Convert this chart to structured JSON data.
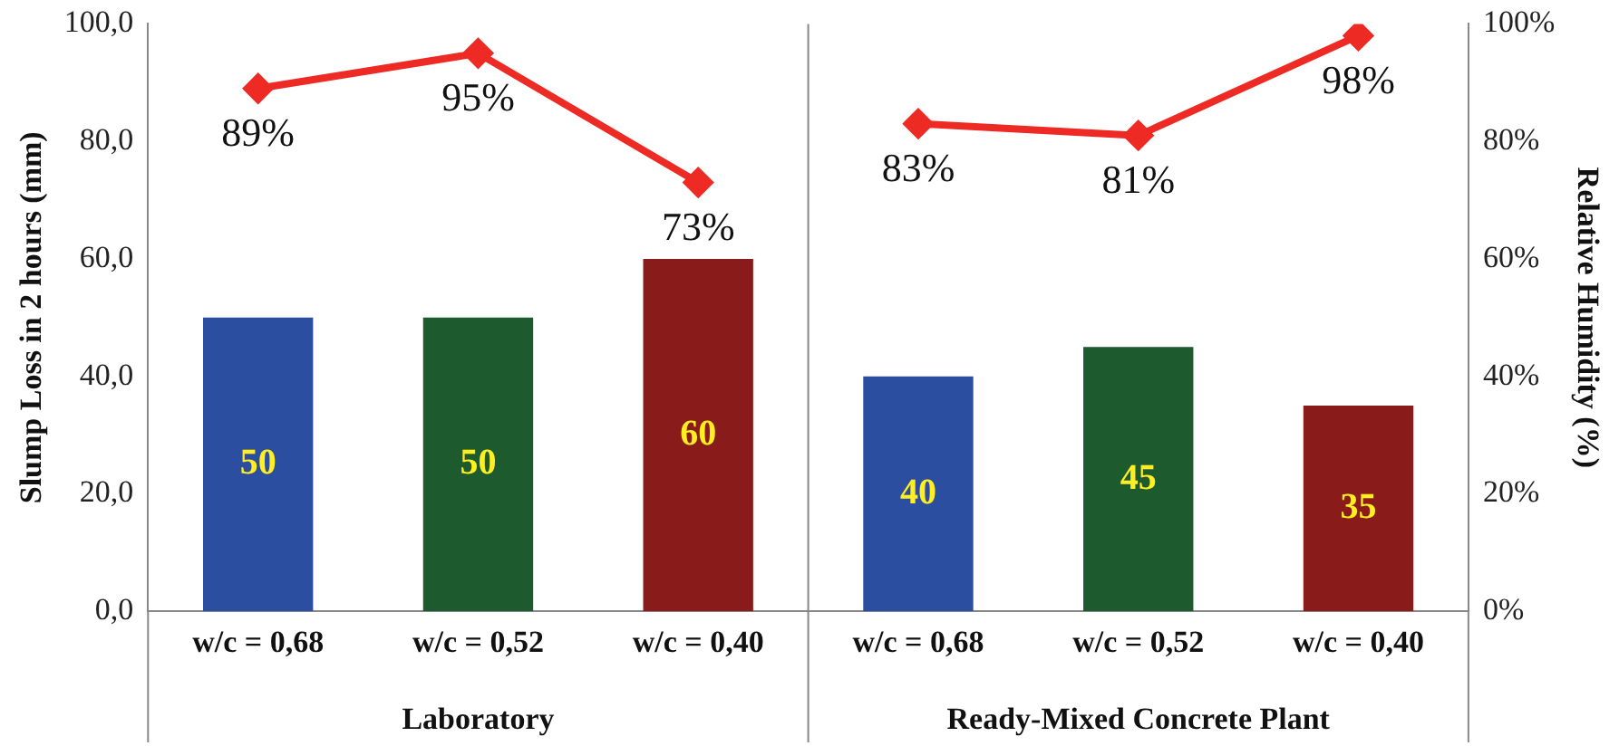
{
  "chart_data": {
    "type": "bar",
    "ylabel": "Slump Loss in 2 hours (mm)",
    "y2label": "Relative Humidity (%)",
    "categories": [
      "w/c = 0,68",
      "w/c = 0,52",
      "w/c = 0,40",
      "w/c = 0,68",
      "w/c = 0,52",
      "w/c = 0,40"
    ],
    "series": [
      {
        "colors": [
          "#2c4ea0",
          "#1d5a2e",
          "#8a1b1b",
          "#2c4ea0",
          "#1d5a2e",
          "#8a1b1b"
        ],
        "values": [
          50,
          50,
          60,
          40,
          45,
          35
        ],
        "value_labels": [
          "50",
          "50",
          "60",
          "40",
          "45",
          "35"
        ]
      },
      {
        "type": "line",
        "axis": "y2",
        "color": "#ee2a24",
        "values": [
          89,
          95,
          73,
          null,
          null,
          null
        ],
        "value_labels": [
          "89%",
          "95%",
          "73%",
          null,
          null,
          null
        ]
      },
      {
        "type": "line",
        "axis": "y2",
        "color": "#ee2a24",
        "values": [
          null,
          null,
          null,
          83,
          81,
          98
        ],
        "value_labels": [
          null,
          null,
          null,
          "83%",
          "81%",
          "98%"
        ]
      }
    ],
    "ylim": [
      0,
      100
    ],
    "yticks": [
      {
        "value": 0,
        "label": "0,0"
      },
      {
        "value": 20,
        "label": "20,0"
      },
      {
        "value": 40,
        "label": "40,0"
      },
      {
        "value": 60,
        "label": "60,0"
      },
      {
        "value": 80,
        "label": "80,0"
      },
      {
        "value": 100,
        "label": "100,0"
      }
    ],
    "y2lim": [
      0,
      100
    ],
    "y2ticks": [
      {
        "value": 0,
        "label": "0%"
      },
      {
        "value": 20,
        "label": "20%"
      },
      {
        "value": 40,
        "label": "40%"
      },
      {
        "value": 60,
        "label": "60%"
      },
      {
        "value": 80,
        "label": "80%"
      },
      {
        "value": 100,
        "label": "100%"
      }
    ],
    "annotations": [
      "Laboratory",
      "Ready-Mixed Concrete Plant"
    ],
    "grid": false,
    "legend": false,
    "marker": "diamond",
    "line_style": "solid"
  }
}
